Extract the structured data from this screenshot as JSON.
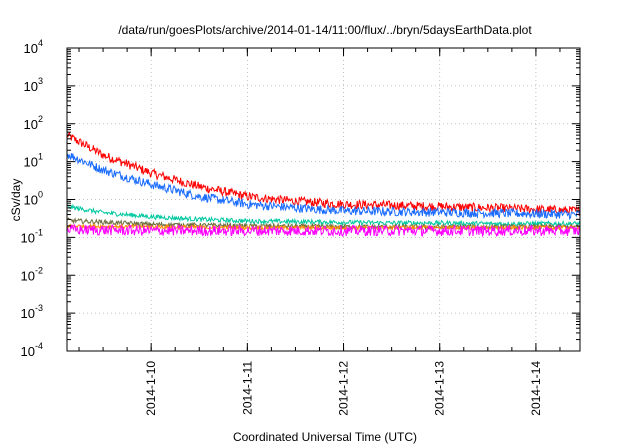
{
  "chart_data": {
    "type": "line",
    "title": "/data/run/goesPlots/archive/2014-01-14/11:00/flux/../bryn/5daysEarthData.plot",
    "xlabel": "Coordinated Universal Time (UTC)",
    "ylabel": "cSv/day",
    "x_scale": "time",
    "y_scale": "log",
    "xlim": [
      "2014-01-09T03:00",
      "2014-01-14T11:00"
    ],
    "ylim": [
      0.0001,
      10000
    ],
    "grid": true,
    "x_ticks": [
      {
        "value": "2014-01-10T00:00",
        "label": "2014-1-10"
      },
      {
        "value": "2014-01-11T00:00",
        "label": "2014-1-11"
      },
      {
        "value": "2014-01-12T00:00",
        "label": "2014-1-12"
      },
      {
        "value": "2014-01-13T00:00",
        "label": "2014-1-13"
      },
      {
        "value": "2014-01-14T00:00",
        "label": "2014-1-14"
      }
    ],
    "y_ticks": [
      {
        "value": 0.0001,
        "base": "10",
        "exp": "-4"
      },
      {
        "value": 0.001,
        "base": "10",
        "exp": "-3"
      },
      {
        "value": 0.01,
        "base": "10",
        "exp": "-2"
      },
      {
        "value": 0.1,
        "base": "10",
        "exp": "-1"
      },
      {
        "value": 1,
        "base": "10",
        "exp": "0"
      },
      {
        "value": 10,
        "base": "10",
        "exp": "1"
      },
      {
        "value": 100,
        "base": "10",
        "exp": "2"
      },
      {
        "value": 1000,
        "base": "10",
        "exp": "3"
      },
      {
        "value": 10000,
        "base": "10",
        "exp": "4"
      }
    ],
    "series": [
      {
        "color": "#ff0000",
        "noise": 0.12,
        "x": [
          "2014-01-09T03:00",
          "2014-01-09T12:00",
          "2014-01-10T00:00",
          "2014-01-10T12:00",
          "2014-01-11T00:00",
          "2014-01-11T12:00",
          "2014-01-12T00:00",
          "2014-01-12T12:00",
          "2014-01-13T00:00",
          "2014-01-13T12:00",
          "2014-01-14T00:00",
          "2014-01-14T11:00"
        ],
        "y": [
          50,
          15,
          5,
          2.2,
          1.2,
          0.9,
          0.75,
          0.7,
          0.65,
          0.6,
          0.55,
          0.5
        ]
      },
      {
        "color": "#1a6cff",
        "noise": 0.12,
        "x": [
          "2014-01-09T03:00",
          "2014-01-09T12:00",
          "2014-01-10T00:00",
          "2014-01-10T12:00",
          "2014-01-11T00:00",
          "2014-01-11T12:00",
          "2014-01-12T00:00",
          "2014-01-12T12:00",
          "2014-01-13T00:00",
          "2014-01-13T12:00",
          "2014-01-14T00:00",
          "2014-01-14T11:00"
        ],
        "y": [
          16,
          6,
          2.5,
          1.2,
          0.75,
          0.6,
          0.5,
          0.48,
          0.46,
          0.44,
          0.42,
          0.4
        ]
      },
      {
        "color": "#00c8a0",
        "noise": 0.06,
        "x": [
          "2014-01-09T03:00",
          "2014-01-09T12:00",
          "2014-01-10T00:00",
          "2014-01-10T12:00",
          "2014-01-11T00:00",
          "2014-01-11T12:00",
          "2014-01-12T00:00",
          "2014-01-12T12:00",
          "2014-01-13T00:00",
          "2014-01-13T12:00",
          "2014-01-14T00:00",
          "2014-01-14T11:00"
        ],
        "y": [
          0.65,
          0.45,
          0.35,
          0.3,
          0.27,
          0.26,
          0.25,
          0.24,
          0.24,
          0.23,
          0.23,
          0.23
        ]
      },
      {
        "color": "#6b6b3a",
        "noise": 0.06,
        "x": [
          "2014-01-09T03:00",
          "2014-01-10T00:00",
          "2014-01-11T00:00",
          "2014-01-12T00:00",
          "2014-01-13T00:00",
          "2014-01-14T11:00"
        ],
        "y": [
          0.28,
          0.22,
          0.2,
          0.19,
          0.19,
          0.19
        ]
      },
      {
        "color": "#ff8c00",
        "noise": 0.05,
        "x": [
          "2014-01-09T03:00",
          "2014-01-10T00:00",
          "2014-01-11T00:00",
          "2014-01-12T00:00",
          "2014-01-13T00:00",
          "2014-01-14T11:00"
        ],
        "y": [
          0.2,
          0.19,
          0.18,
          0.18,
          0.18,
          0.18
        ]
      },
      {
        "color": "#ff00ff",
        "noise": 0.14,
        "x": [
          "2014-01-09T03:00",
          "2014-01-10T00:00",
          "2014-01-11T00:00",
          "2014-01-12T00:00",
          "2014-01-13T00:00",
          "2014-01-14T11:00"
        ],
        "y": [
          0.16,
          0.15,
          0.15,
          0.15,
          0.15,
          0.15
        ]
      }
    ]
  }
}
